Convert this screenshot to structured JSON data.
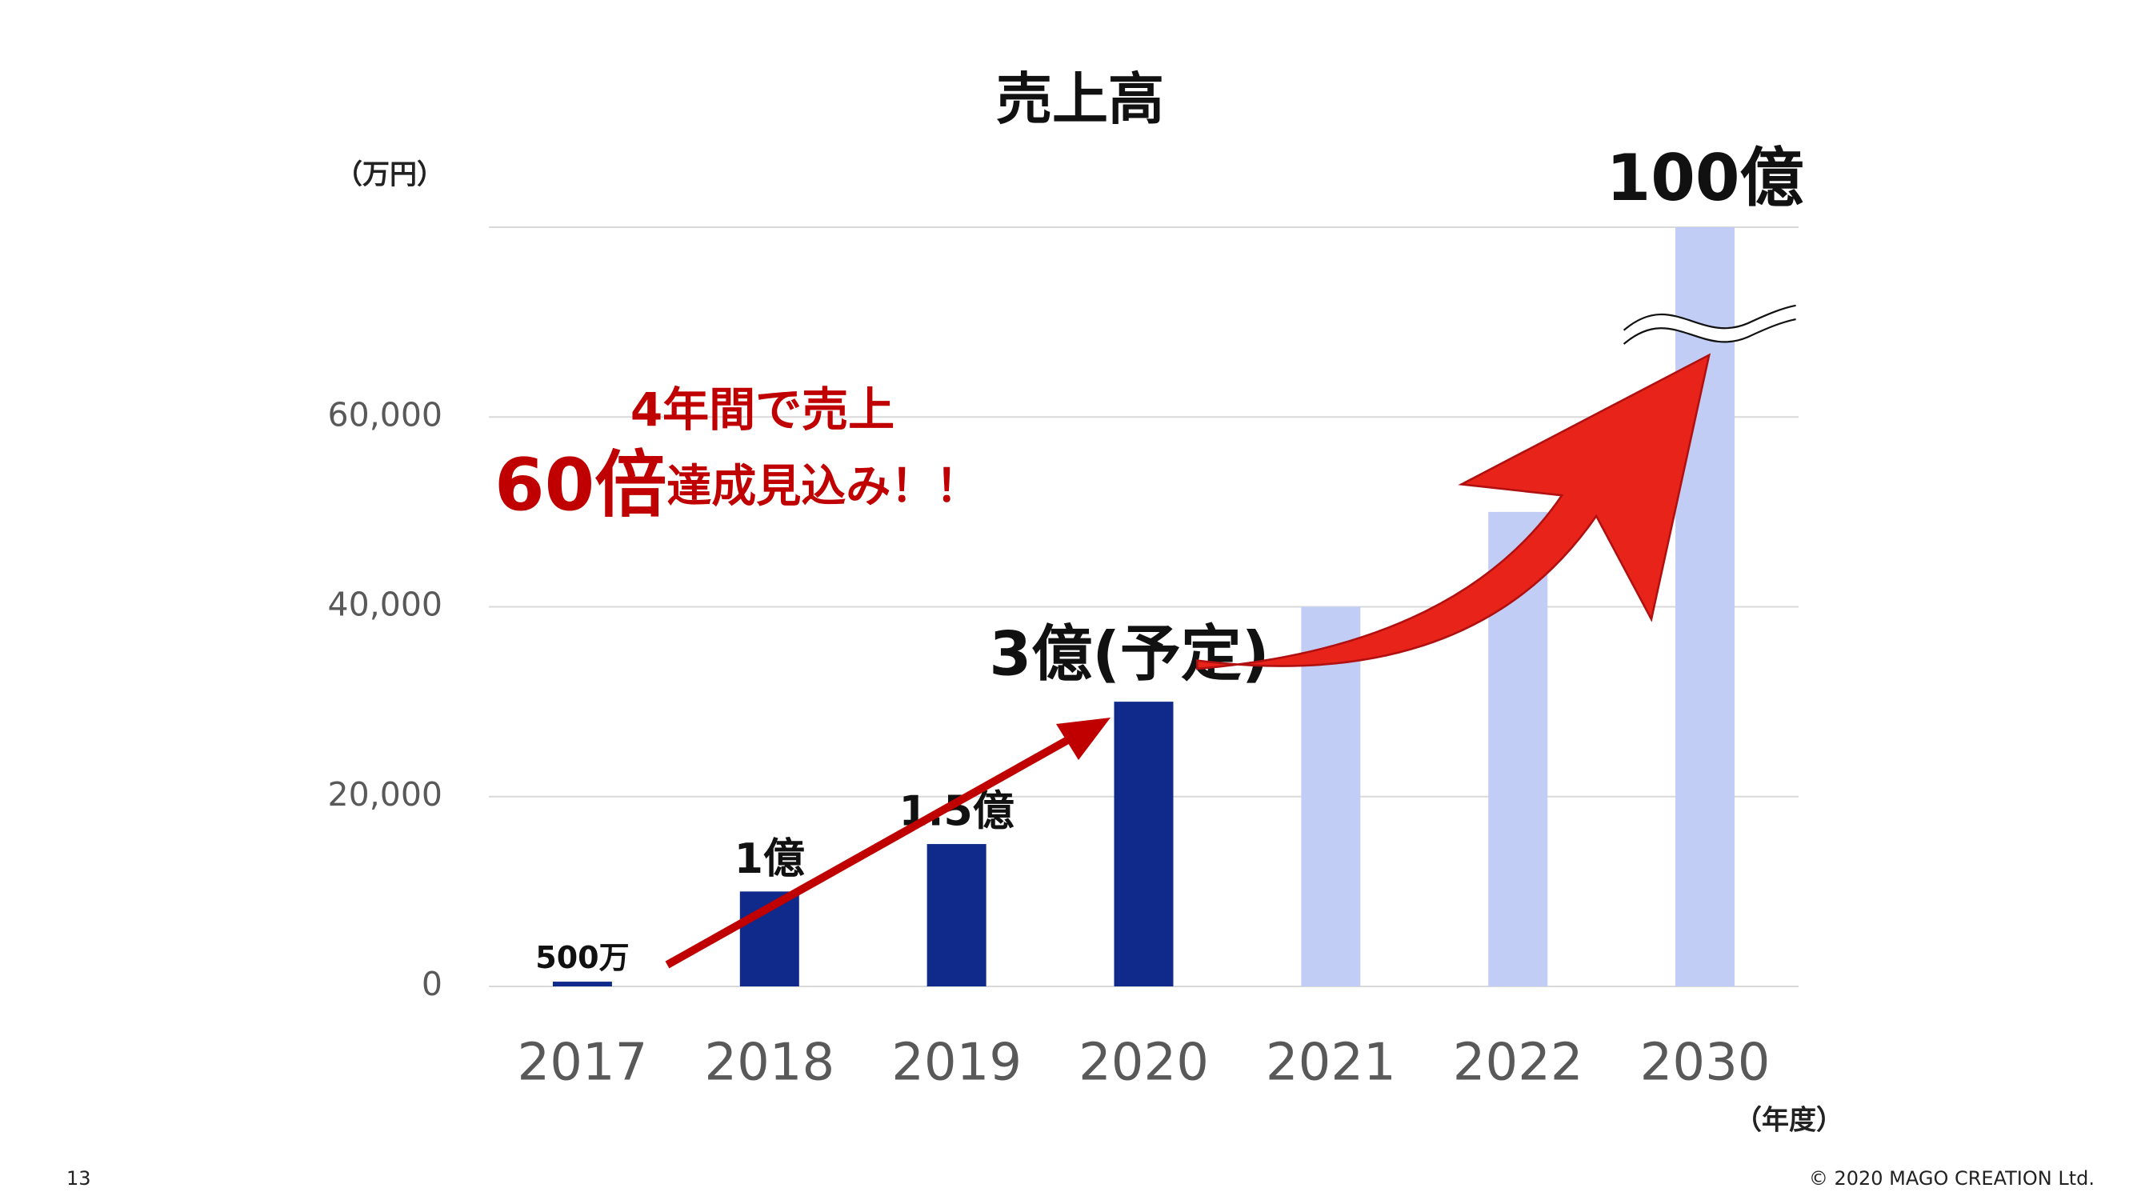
{
  "chart_data": {
    "type": "bar",
    "title": "売上高",
    "y_unit": "（万円）",
    "x_unit": "（年度）",
    "categories": [
      "2017",
      "2018",
      "2019",
      "2020",
      "2021",
      "2022",
      "2030"
    ],
    "values": [
      500,
      10000,
      15000,
      30000,
      40000,
      50000,
      1000000
    ],
    "value_labels": [
      "500万",
      "1億",
      "1.5億",
      "3億(予定)",
      null,
      null,
      "100億"
    ],
    "colors": [
      "#0f2a8a",
      "#0f2a8a",
      "#0f2a8a",
      "#0f2a8a",
      "#c2cdf6",
      "#c2cdf6",
      "#c2cdf6"
    ],
    "ylim": [
      0,
      80000
    ],
    "yticks": [
      0,
      {
        "value": 20000,
        "label": "20,000"
      },
      {
        "value": 40000,
        "label": "40,000"
      },
      {
        "value": 60000,
        "label": "60,000"
      }
    ],
    "grid": true,
    "axis_break": true,
    "annotations": [
      "4年間で売上",
      "60倍",
      "達成見込み！！"
    ]
  },
  "page_number": "13",
  "copyright": "© 2020 MAGO CREATION Ltd."
}
